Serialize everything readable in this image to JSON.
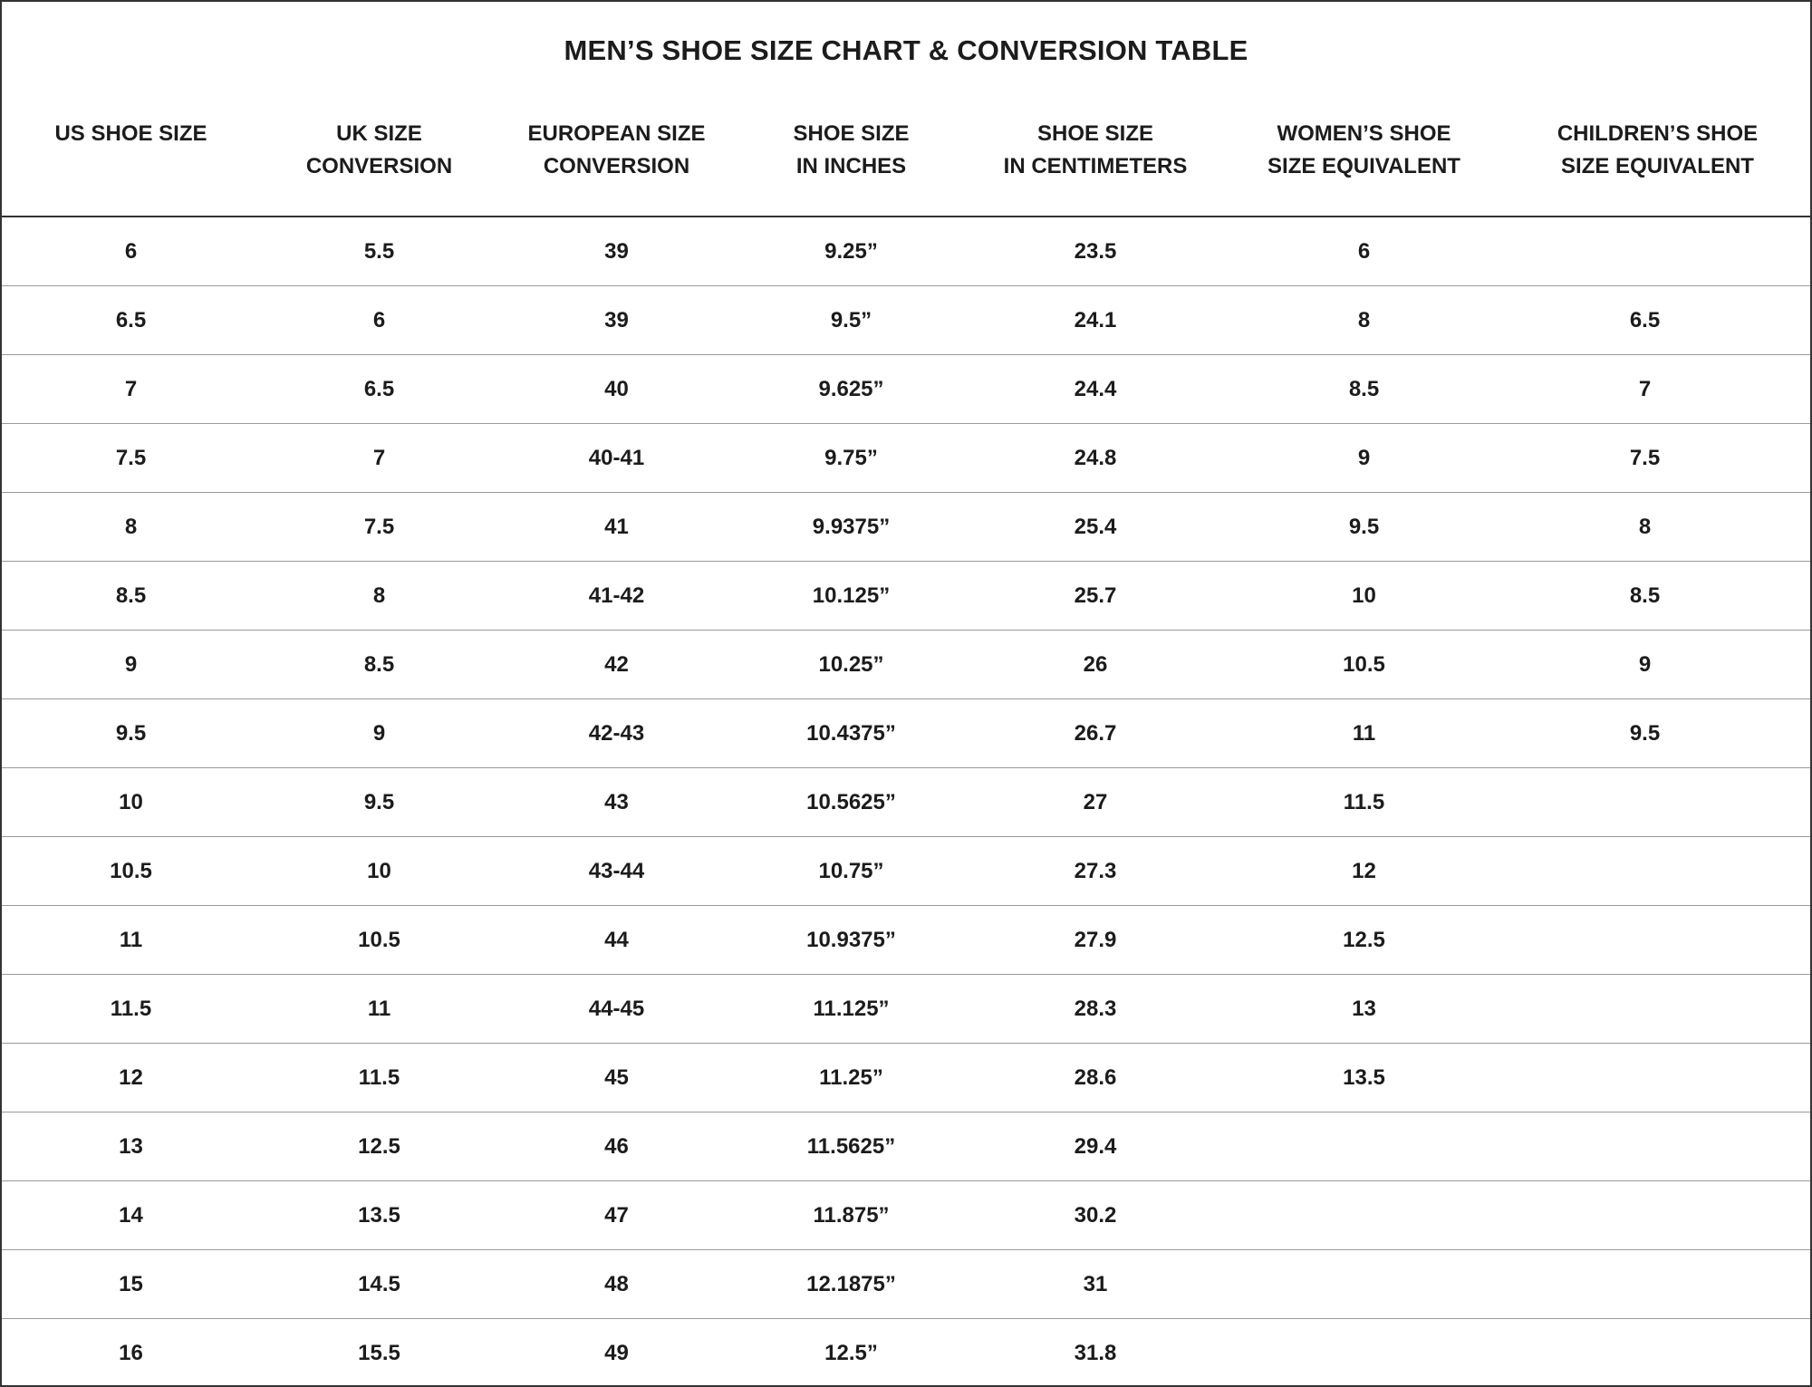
{
  "title": "MEN’S SHOE SIZE CHART & CONVERSION TABLE",
  "columns": [
    "US SHOE SIZE",
    "UK SIZE\nCONVERSION",
    "EUROPEAN SIZE\nCONVERSION",
    "SHOE SIZE\nIN INCHES",
    "SHOE SIZE\nIN CENTIMETERS",
    "WOMEN’S SHOE\nSIZE EQUIVALENT",
    "CHILDREN’S SHOE\nSIZE EQUIVALENT"
  ],
  "rows": [
    [
      "6",
      "5.5",
      "39",
      "9.25”",
      "23.5",
      "6",
      ""
    ],
    [
      "6.5",
      "6",
      "39",
      "9.5”",
      "24.1",
      "8",
      "6.5"
    ],
    [
      "7",
      "6.5",
      "40",
      "9.625”",
      "24.4",
      "8.5",
      "7"
    ],
    [
      "7.5",
      "7",
      "40-41",
      "9.75”",
      "24.8",
      "9",
      "7.5"
    ],
    [
      "8",
      "7.5",
      "41",
      "9.9375”",
      "25.4",
      "9.5",
      "8"
    ],
    [
      "8.5",
      "8",
      "41-42",
      "10.125”",
      "25.7",
      "10",
      "8.5"
    ],
    [
      "9",
      "8.5",
      "42",
      "10.25”",
      "26",
      "10.5",
      "9"
    ],
    [
      "9.5",
      "9",
      "42-43",
      "10.4375”",
      "26.7",
      "11",
      "9.5"
    ],
    [
      "10",
      "9.5",
      "43",
      "10.5625”",
      "27",
      "11.5",
      ""
    ],
    [
      "10.5",
      "10",
      "43-44",
      "10.75”",
      "27.3",
      "12",
      ""
    ],
    [
      "11",
      "10.5",
      "44",
      "10.9375”",
      "27.9",
      "12.5",
      ""
    ],
    [
      "11.5",
      "11",
      "44-45",
      "11.125”",
      "28.3",
      "13",
      ""
    ],
    [
      "12",
      "11.5",
      "45",
      "11.25”",
      "28.6",
      "13.5",
      ""
    ],
    [
      "13",
      "12.5",
      "46",
      "11.5625”",
      "29.4",
      "",
      ""
    ],
    [
      "14",
      "13.5",
      "47",
      "11.875”",
      "30.2",
      "",
      ""
    ],
    [
      "15",
      "14.5",
      "48",
      "12.1875”",
      "31",
      "",
      ""
    ],
    [
      "16",
      "15.5",
      "49",
      "12.5”",
      "31.8",
      "",
      ""
    ]
  ]
}
